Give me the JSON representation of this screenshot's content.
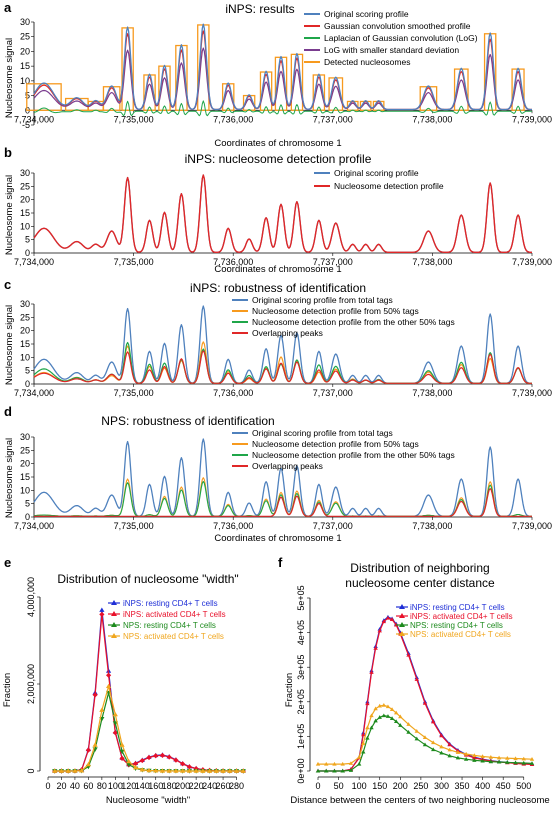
{
  "panels": {
    "a": {
      "letter": "a",
      "title": "iNPS: results",
      "ylabel": "Nucleosome signal",
      "xlabel": "Coordinates of chromosome 1"
    },
    "b": {
      "letter": "b",
      "title": "iNPS: nucleosome detection profile",
      "ylabel": "Nucleosome signal",
      "xlabel": "Coordinates of chromosome 1"
    },
    "c": {
      "letter": "c",
      "title": "iNPS: robustness of identification",
      "ylabel": "Nucleosome signal",
      "xlabel": "Coordinates of chromosome 1"
    },
    "d": {
      "letter": "d",
      "title": "NPS: robustness of identification",
      "ylabel": "Nucleosome signal",
      "xlabel": "Coordinates of chromosome 1"
    },
    "e": {
      "letter": "e",
      "title": "Distribution of nucleosome \"width\"",
      "ylabel": "Fraction",
      "xlabel": "Nucleosome \"width\""
    },
    "f": {
      "letter": "f",
      "title_line1": "Distribution of neighboring",
      "title_line2": "nucleosome center distance",
      "ylabel": "Fraction",
      "xlabel": "Distance between the centers of two neighboring nucleosome"
    }
  },
  "colors": {
    "blue": "#4f81bd",
    "red": "#e02727",
    "green": "#1fa64a",
    "purple": "#7a3c8f",
    "orange": "#f79a1e",
    "e_blue": "#1f2fd6",
    "e_red": "#e8102a",
    "e_green": "#1d8a1d",
    "e_orange": "#f0a61e"
  },
  "chart_data": [
    {
      "id": "a",
      "type": "line",
      "title": "iNPS: results",
      "xlabel": "Coordinates of chromosome 1",
      "ylabel": "Nucleosome signal",
      "xlim": [
        7734000,
        7739000
      ],
      "ylim": [
        -5,
        30
      ],
      "xticks": [
        "7,734,000",
        "7,735,000",
        "7,736,000",
        "7,737,000",
        "7,738,000",
        "7,739,000"
      ],
      "yticks": [
        "-5",
        "0",
        "5",
        "10",
        "15",
        "20",
        "25",
        "30"
      ],
      "legend": [
        "Original scoring profile",
        "Gaussian convolution smoothed profile",
        "Laplacian of Gaussian convolution (LoG)",
        "LoG with smaller standard deviation",
        "Detected nucleosomes"
      ],
      "peaks": [
        {
          "x": 7734100,
          "h": 9,
          "w": 230
        },
        {
          "x": 7734430,
          "h": 4,
          "w": 150
        },
        {
          "x": 7734620,
          "h": 3,
          "w": 100
        },
        {
          "x": 7734780,
          "h": 8,
          "w": 110
        },
        {
          "x": 7734940,
          "h": 28,
          "w": 75
        },
        {
          "x": 7735160,
          "h": 12,
          "w": 75
        },
        {
          "x": 7735310,
          "h": 15,
          "w": 75
        },
        {
          "x": 7735480,
          "h": 22,
          "w": 75
        },
        {
          "x": 7735700,
          "h": 29,
          "w": 75
        },
        {
          "x": 7735950,
          "h": 9,
          "w": 75
        },
        {
          "x": 7736160,
          "h": 5,
          "w": 75
        },
        {
          "x": 7736330,
          "h": 13,
          "w": 75
        },
        {
          "x": 7736480,
          "h": 18,
          "w": 75
        },
        {
          "x": 7736640,
          "h": 19,
          "w": 75
        },
        {
          "x": 7736860,
          "h": 12,
          "w": 75
        },
        {
          "x": 7737030,
          "h": 11,
          "w": 90
        },
        {
          "x": 7737200,
          "h": 3,
          "w": 70
        },
        {
          "x": 7737330,
          "h": 3,
          "w": 70
        },
        {
          "x": 7737460,
          "h": 3,
          "w": 70
        },
        {
          "x": 7737960,
          "h": 8,
          "w": 110
        },
        {
          "x": 7738290,
          "h": 14,
          "w": 90
        },
        {
          "x": 7738580,
          "h": 26,
          "w": 75
        },
        {
          "x": 7738860,
          "h": 14,
          "w": 80
        }
      ]
    },
    {
      "id": "b",
      "type": "line",
      "title": "iNPS: nucleosome detection profile",
      "xlabel": "Coordinates of chromosome 1",
      "ylabel": "Nucleosome signal",
      "xlim": [
        7734000,
        7739000
      ],
      "ylim": [
        0,
        30
      ],
      "xticks": [
        "7,734,000",
        "7,735,000",
        "7,736,000",
        "7,737,000",
        "7,738,000",
        "7,739,000"
      ],
      "yticks": [
        "0",
        "5",
        "10",
        "15",
        "20",
        "25",
        "30"
      ],
      "legend": [
        "Original scoring profile",
        "Nucleosome detection profile"
      ]
    },
    {
      "id": "c",
      "type": "line",
      "title": "iNPS: robustness of identification",
      "xlabel": "Coordinates of chromosome 1",
      "ylabel": "Nucleosome signal",
      "xlim": [
        7734000,
        7739000
      ],
      "ylim": [
        0,
        30
      ],
      "xticks": [
        "7,734,000",
        "7,735,000",
        "7,736,000",
        "7,737,000",
        "7,738,000",
        "7,739,000"
      ],
      "yticks": [
        "0",
        "5",
        "10",
        "15",
        "20",
        "25",
        "30"
      ],
      "legend": [
        "Original scoring profile from total tags",
        "Nucleosome detection profile from 50% tags",
        "Nucleosome detection profile from the other 50% tags",
        "Overlapping peaks"
      ]
    },
    {
      "id": "d",
      "type": "line",
      "title": "NPS: robustness of identification",
      "xlabel": "Coordinates of chromosome 1",
      "ylabel": "Nucleosome signal",
      "xlim": [
        7734000,
        7739000
      ],
      "ylim": [
        0,
        30
      ],
      "xticks": [
        "7,734,000",
        "7,735,000",
        "7,736,000",
        "7,737,000",
        "7,738,000",
        "7,739,000"
      ],
      "yticks": [
        "0",
        "5",
        "10",
        "15",
        "20",
        "25",
        "30"
      ],
      "legend": [
        "Original scoring profile from total tags",
        "Nucleosome detection profile from 50% tags",
        "Nucleosome detection profile from the other 50% tags",
        "Overlapping peaks"
      ]
    },
    {
      "id": "e",
      "type": "line",
      "title": "Distribution of nucleosome \"width\"",
      "xlabel": "Nucleosome \"width\"",
      "ylabel": "Fraction",
      "xlim": [
        0,
        300
      ],
      "ylim": [
        0,
        4000000
      ],
      "xticks": [
        "0",
        "20",
        "40",
        "60",
        "80",
        "100",
        "120",
        "140",
        "160",
        "180",
        "200",
        "220",
        "240",
        "260",
        "280"
      ],
      "yticks": [
        "0",
        "2,000,000",
        "4,000,000"
      ],
      "x": [
        10,
        20,
        30,
        40,
        50,
        60,
        70,
        80,
        90,
        100,
        110,
        120,
        130,
        140,
        150,
        160,
        170,
        180,
        190,
        200,
        210,
        220,
        230,
        240,
        250,
        260,
        270,
        280,
        290
      ],
      "series": [
        {
          "name": "iNPS: resting CD4+ T cells",
          "values": [
            0,
            0,
            0,
            2000,
            30000,
            500000,
            1800000,
            3700000,
            2300000,
            900000,
            300000,
            150000,
            180000,
            250000,
            320000,
            360000,
            370000,
            330000,
            260000,
            170000,
            100000,
            60000,
            30000,
            15000,
            8000,
            4000,
            2000,
            1000,
            500
          ]
        },
        {
          "name": "iNPS: activated CD4+ T cells",
          "values": [
            0,
            0,
            0,
            2000,
            30000,
            480000,
            1750000,
            3600000,
            2200000,
            880000,
            290000,
            140000,
            170000,
            240000,
            310000,
            350000,
            360000,
            320000,
            250000,
            165000,
            95000,
            55000,
            28000,
            14000,
            7000,
            3500,
            1800,
            900,
            400
          ]
        },
        {
          "name": "NPS: resting CD4+ T cells",
          "values": [
            0,
            0,
            0,
            1000,
            5000,
            100000,
            500000,
            1200000,
            1800000,
            1100000,
            450000,
            150000,
            60000,
            25000,
            10000,
            5000,
            3000,
            2000,
            1000,
            500,
            300,
            200,
            100,
            50,
            20,
            10,
            0,
            0,
            0
          ]
        },
        {
          "name": "NPS: activated CD4+ T cells",
          "values": [
            0,
            0,
            0,
            1000,
            8000,
            150000,
            600000,
            1400000,
            1950000,
            1300000,
            600000,
            220000,
            80000,
            30000,
            12000,
            6000,
            3000,
            2000,
            1000,
            500,
            300,
            200,
            100,
            50,
            20,
            10,
            0,
            0,
            0
          ]
        }
      ]
    },
    {
      "id": "f",
      "type": "line",
      "title": "Distribution of neighboring nucleosome center distance",
      "xlabel": "Distance between the centers of two neighboring nucleosome",
      "ylabel": "Fraction",
      "xlim": [
        0,
        520
      ],
      "ylim": [
        0,
        500000
      ],
      "xticks": [
        "0",
        "50",
        "100",
        "150",
        "200",
        "250",
        "300",
        "350",
        "400",
        "450",
        "500"
      ],
      "yticks": [
        "0e+00",
        "1e+05",
        "2e+05",
        "3e+05",
        "4e+05",
        "5e+05"
      ],
      "x": [
        0,
        20,
        40,
        60,
        80,
        100,
        110,
        120,
        130,
        140,
        150,
        160,
        170,
        180,
        190,
        200,
        220,
        240,
        260,
        280,
        300,
        320,
        340,
        360,
        380,
        400,
        420,
        440,
        460,
        480,
        500,
        520
      ],
      "series": [
        {
          "name": "iNPS: resting CD4+ T cells",
          "values": [
            0,
            0,
            0,
            0,
            5000,
            40000,
            110000,
            200000,
            290000,
            360000,
            410000,
            435000,
            445000,
            440000,
            425000,
            400000,
            340000,
            270000,
            200000,
            145000,
            105000,
            78000,
            60000,
            48000,
            40000,
            34000,
            30000,
            27000,
            25000,
            23000,
            21000,
            20000
          ]
        },
        {
          "name": "iNPS: activated CD4+ T cells",
          "values": [
            0,
            0,
            0,
            0,
            5000,
            38000,
            105000,
            195000,
            285000,
            355000,
            405000,
            432000,
            442000,
            438000,
            422000,
            396000,
            335000,
            265000,
            196000,
            142000,
            102000,
            76000,
            58000,
            46000,
            38000,
            33000,
            29000,
            26000,
            24000,
            22000,
            20000,
            19000
          ]
        },
        {
          "name": "NPS: resting CD4+ T cells",
          "values": [
            0,
            0,
            0,
            0,
            2000,
            20000,
            55000,
            95000,
            125000,
            145000,
            155000,
            160000,
            158000,
            152000,
            143000,
            132000,
            112000,
            93000,
            76000,
            62000,
            52000,
            44000,
            38000,
            34000,
            31000,
            29000,
            27000,
            26000,
            25000,
            24000,
            23000,
            22000
          ]
        },
        {
          "name": "NPS: activated CD4+ T cells",
          "values": [
            20000,
            20000,
            20000,
            20000,
            22000,
            40000,
            80000,
            125000,
            160000,
            180000,
            188000,
            190000,
            186000,
            178000,
            168000,
            157000,
            135000,
            115000,
            97000,
            82000,
            70000,
            61000,
            54000,
            49000,
            45000,
            42000,
            40000,
            38000,
            37000,
            36000,
            35000,
            34000
          ]
        }
      ]
    }
  ]
}
